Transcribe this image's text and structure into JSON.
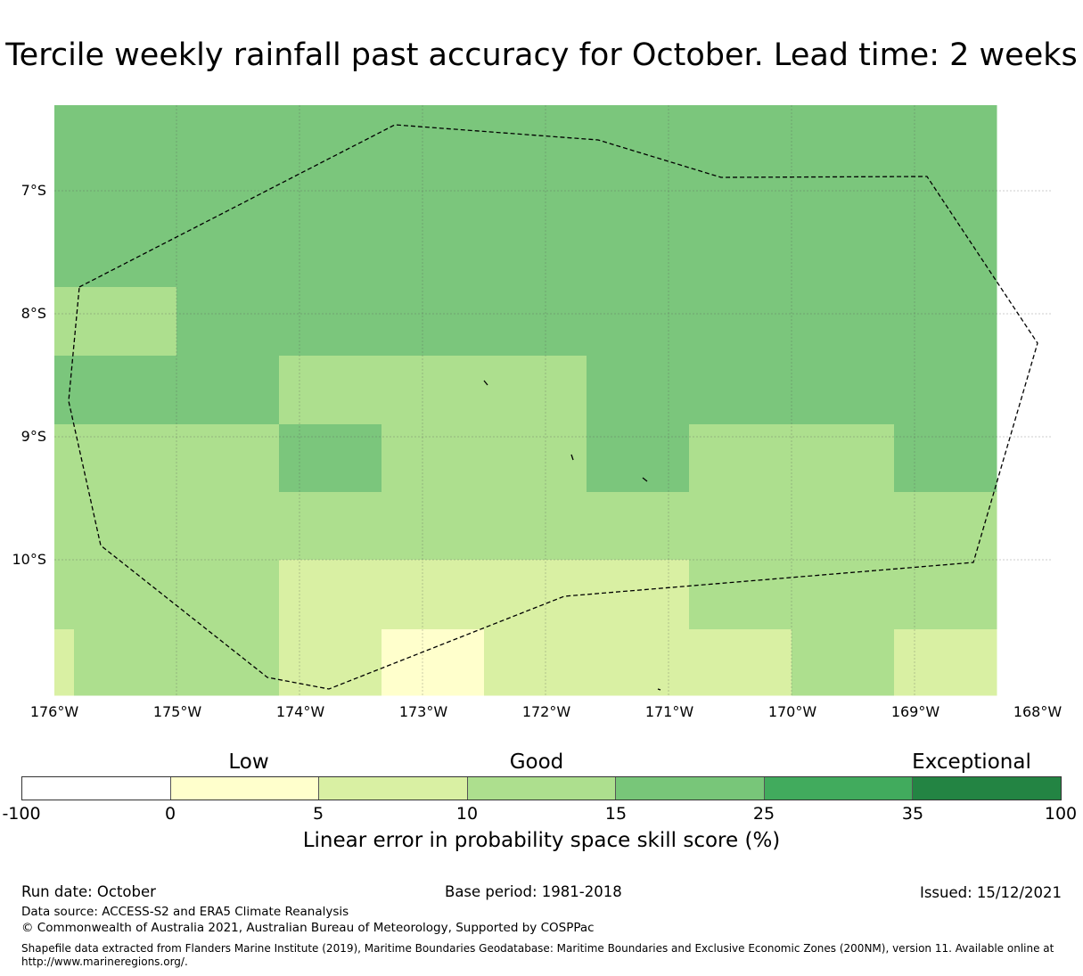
{
  "title": "Tercile weekly rainfall past accuracy for October. Lead time: 2 weeks",
  "map": {
    "lat_labels": [
      "7°S",
      "8°S",
      "9°S",
      "10°S"
    ],
    "lon_labels": [
      "176°W",
      "175°W",
      "174°W",
      "173°W",
      "172°W",
      "171°W",
      "170°W",
      "169°W",
      "168°W"
    ],
    "grid_colors": {
      "a": "#7bc67c",
      "b": "#addf8e",
      "c": "#d9f0a3",
      "d": "#ffffcc"
    },
    "grid": [
      "aaaaaaaaaa",
      "aaaaaaaaaa",
      "aaaaaaaaaa",
      "bbaaaaaaaa",
      "aaabbbaaaa",
      "bbbabbabba",
      "bbbbbbbbbb",
      "bbbccccbbb",
      "cbbcdcccbc"
    ],
    "boundary_line_color": "#000000"
  },
  "legend": {
    "categories": [
      "Low",
      "Good",
      "Exceptional"
    ],
    "colors": [
      "#ffffff",
      "#ffffcc",
      "#d9f0a3",
      "#addf8e",
      "#78c679",
      "#41ab5d",
      "#238443"
    ],
    "ticks": [
      "-100",
      "0",
      "5",
      "10",
      "15",
      "25",
      "35",
      "100"
    ],
    "label": "Linear error in probability space skill score (%)"
  },
  "footer": {
    "run_date": "Run date: October",
    "base_period": "Base period: 1981-2018",
    "issued": "Issued: 15/12/2021",
    "data_source": "Data source: ACCESS-S2 and ERA5 Climate Reanalysis",
    "copyright": "© Commonwealth of Australia 2021, Australian Bureau of Meteorology, Supported by COSPPac",
    "shapefile": "Shapefile data extracted from Flanders Marine Institute (2019), Maritime Boundaries Geodatabase: Maritime Boundaries and Exclusive Economic Zones (200NM), version 11. Available online at http://www.marineregions.org/."
  }
}
